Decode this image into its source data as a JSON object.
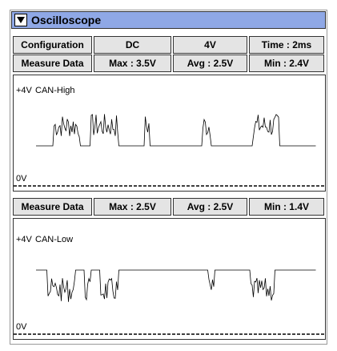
{
  "header": {
    "title": "Oscilloscope"
  },
  "configuration": [
    "Configuration",
    "DC",
    "4V",
    "Time : 2ms"
  ],
  "channels": [
    {
      "measure": [
        "Measure Data",
        "Max : 3.5V",
        "Avg : 2.5V",
        "Min : 2.4V"
      ],
      "top_label": "+4V",
      "name": "CAN-High",
      "bottom_label": "0V"
    },
    {
      "measure": [
        "Measure Data",
        "Max : 2.5V",
        "Avg : 2.5V",
        "Min : 1.4V"
      ],
      "top_label": "+4V",
      "name": "CAN-Low",
      "bottom_label": "0V"
    }
  ]
}
